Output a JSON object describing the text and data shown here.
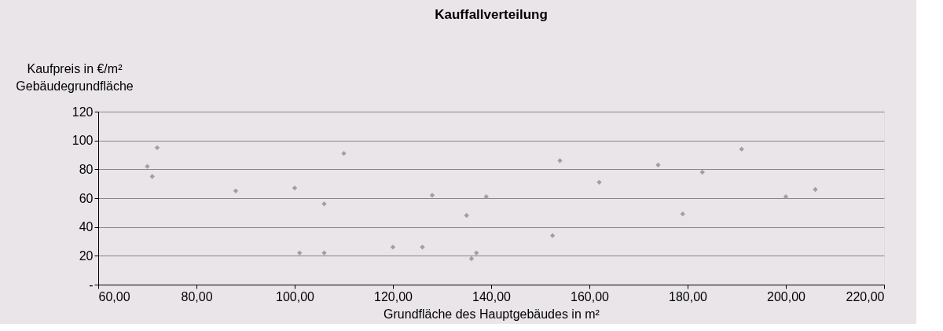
{
  "chart_data": {
    "type": "scatter",
    "title": "Kauffallverteilung",
    "xlabel": "Grundfläche des Hauptgebäudes in m²",
    "ylabel": "Kaufpreis in €/m² Gebäudegrundfläche",
    "x": [
      70,
      71,
      72,
      88,
      100,
      101,
      106,
      106,
      110,
      120,
      126,
      128,
      135,
      136,
      137,
      139,
      152.5,
      154,
      162,
      174,
      179,
      183,
      191,
      200,
      206
    ],
    "series": [
      {
        "color": "#a0a0a0",
        "values": [
          82,
          75,
          95,
          65,
          67,
          22,
          56,
          22,
          91,
          26,
          26,
          62,
          48,
          18,
          22,
          61,
          34,
          86,
          71,
          83,
          49,
          78,
          94,
          61,
          66
        ]
      }
    ],
    "xlim": [
      60,
      220
    ],
    "xticks": [
      {
        "value": 60,
        "label": "60,00"
      },
      {
        "value": 80,
        "label": "80,00"
      },
      {
        "value": 100,
        "label": "100,00"
      },
      {
        "value": 120,
        "label": "120,00"
      },
      {
        "value": 140,
        "label": "140,00"
      },
      {
        "value": 160,
        "label": "160,00"
      },
      {
        "value": 180,
        "label": "180,00"
      },
      {
        "value": 200,
        "label": "200,00"
      },
      {
        "value": 220,
        "label": "220,00"
      }
    ],
    "ylim": [
      0,
      120
    ],
    "yticks": [
      {
        "value": 0,
        "label": "-"
      },
      20,
      40,
      60,
      80,
      100,
      120
    ],
    "grid": "y",
    "marker": "diamond",
    "legend": false
  }
}
